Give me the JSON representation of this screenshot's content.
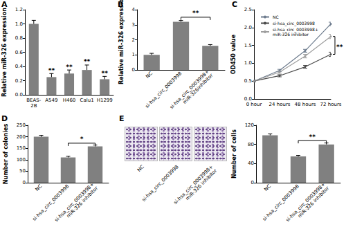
{
  "chart_data": [
    {
      "panel": "A",
      "type": "bar",
      "y_label": "Relative miR-326 expression",
      "categories": [
        "BEAS-2B",
        "A549",
        "H460",
        "Calu1",
        "H1299"
      ],
      "values": [
        1.0,
        0.25,
        0.3,
        0.35,
        0.22
      ],
      "errors": [
        0.05,
        0.05,
        0.05,
        0.07,
        0.04
      ],
      "color": "#808080",
      "ylim": [
        0,
        1.2
      ],
      "yticks": [
        {
          "value": 0,
          "label": "0.0"
        },
        0.2,
        0.4,
        0.6,
        0.8,
        {
          "value": 1,
          "label": "1.0"
        },
        1.2
      ],
      "grid": false,
      "annotations": [
        {
          "text": "**",
          "category": "A549",
          "y": 0.33
        },
        {
          "text": "**",
          "category": "H460",
          "y": 0.38
        },
        {
          "text": "**",
          "category": "Calu1",
          "y": 0.45
        },
        {
          "text": "**",
          "category": "H1299",
          "y": 0.29
        }
      ]
    },
    {
      "panel": "B",
      "type": "bar",
      "y_label": "Relative miR-326 expression",
      "categories": [
        "NC",
        "si-hsa_circ_0003998",
        "si-hsa_circ_0003998+miR-326inhibitor"
      ],
      "values": [
        1.0,
        3.2,
        1.6
      ],
      "errors": [
        0.1,
        0.08,
        0.08
      ],
      "color": "#808080",
      "ylim": [
        0,
        4
      ],
      "yticks": [
        0,
        1,
        2,
        3,
        4
      ],
      "grid": false,
      "annotations": [
        {
          "text": "**",
          "from": "si-hsa_circ_0003998",
          "to": "si-hsa_circ_0003998+miR-326inhibitor",
          "y": 3.5
        }
      ]
    },
    {
      "panel": "C",
      "type": "line",
      "y_label": "OD450 value",
      "categories": [
        "0 hour",
        "24 hours",
        "48 hours",
        "72 hours"
      ],
      "series": [
        {
          "name": "NC",
          "color": "#6d7b8d",
          "values": [
            0.5,
            0.8,
            1.35,
            2.1
          ],
          "errors": [
            0.02,
            0.03,
            0.04,
            0.05
          ]
        },
        {
          "name": "si-hsa_circ_0003998",
          "color": "#4a4a4a",
          "values": [
            0.5,
            0.65,
            0.9,
            1.25
          ],
          "errors": [
            0.02,
            0.03,
            0.04,
            0.06
          ]
        },
        {
          "name": "si-hsa_circ_0003998+miR-326 inhibitor",
          "color": "#9e9e9e",
          "values": [
            0.5,
            0.75,
            1.2,
            1.75
          ],
          "errors": [
            0.02,
            0.03,
            0.05,
            0.06
          ]
        }
      ],
      "ylim": [
        0,
        2.5
      ],
      "yticks": [
        {
          "value": 0,
          "label": "0.0"
        },
        0.5,
        {
          "value": 1,
          "label": "1.0"
        },
        1.5,
        {
          "value": 2,
          "label": "2.0"
        },
        2.5
      ],
      "grid": false,
      "legend": "upper left",
      "marker": "circle",
      "line_style": "solid",
      "annotations": [
        {
          "text": "**",
          "category": "72 hours",
          "y_from": 1.25,
          "y_to": 1.75
        }
      ]
    },
    {
      "panel": "D",
      "type": "bar",
      "y_label": "Number of colonies",
      "categories": [
        "NC",
        "si-hsa_circ_0003998",
        "si-hsa_circ_0003998+miR-326 inhibitor"
      ],
      "values": [
        200,
        110,
        158
      ],
      "errors": [
        6,
        5,
        6
      ],
      "color": "#808080",
      "ylim": [
        0,
        250
      ],
      "yticks": [
        0,
        50,
        100,
        150,
        200,
        250
      ],
      "grid": false,
      "annotations": [
        {
          "text": "*",
          "from": "si-hsa_circ_0003998",
          "to": "si-hsa_circ_0003998+miR-326 inhibitor",
          "y": 172
        }
      ]
    },
    {
      "type": "bar",
      "y_label": "Number of cells",
      "categories": [
        "NC",
        "si-hsa_circ_0003998",
        "si-hsa_circ_0003998+miR-326 inhibitor"
      ],
      "values": [
        99,
        55,
        80
      ],
      "errors": [
        3,
        2,
        3
      ],
      "color": "#808080",
      "ylim": [
        0,
        120
      ],
      "yticks": [
        0,
        40,
        80,
        120
      ],
      "grid": false,
      "annotations": [
        {
          "text": "**",
          "from": "si-hsa_circ_0003998",
          "to": "si-hsa_circ_0003998+miR-326 inhibitor",
          "y": 88
        }
      ]
    }
  ],
  "images": {
    "panel": "E",
    "captions": [
      "NC",
      "si-hsa_circ_0003998",
      "si-hsa_circ_0003998+miR-326 inhibitor"
    ]
  }
}
